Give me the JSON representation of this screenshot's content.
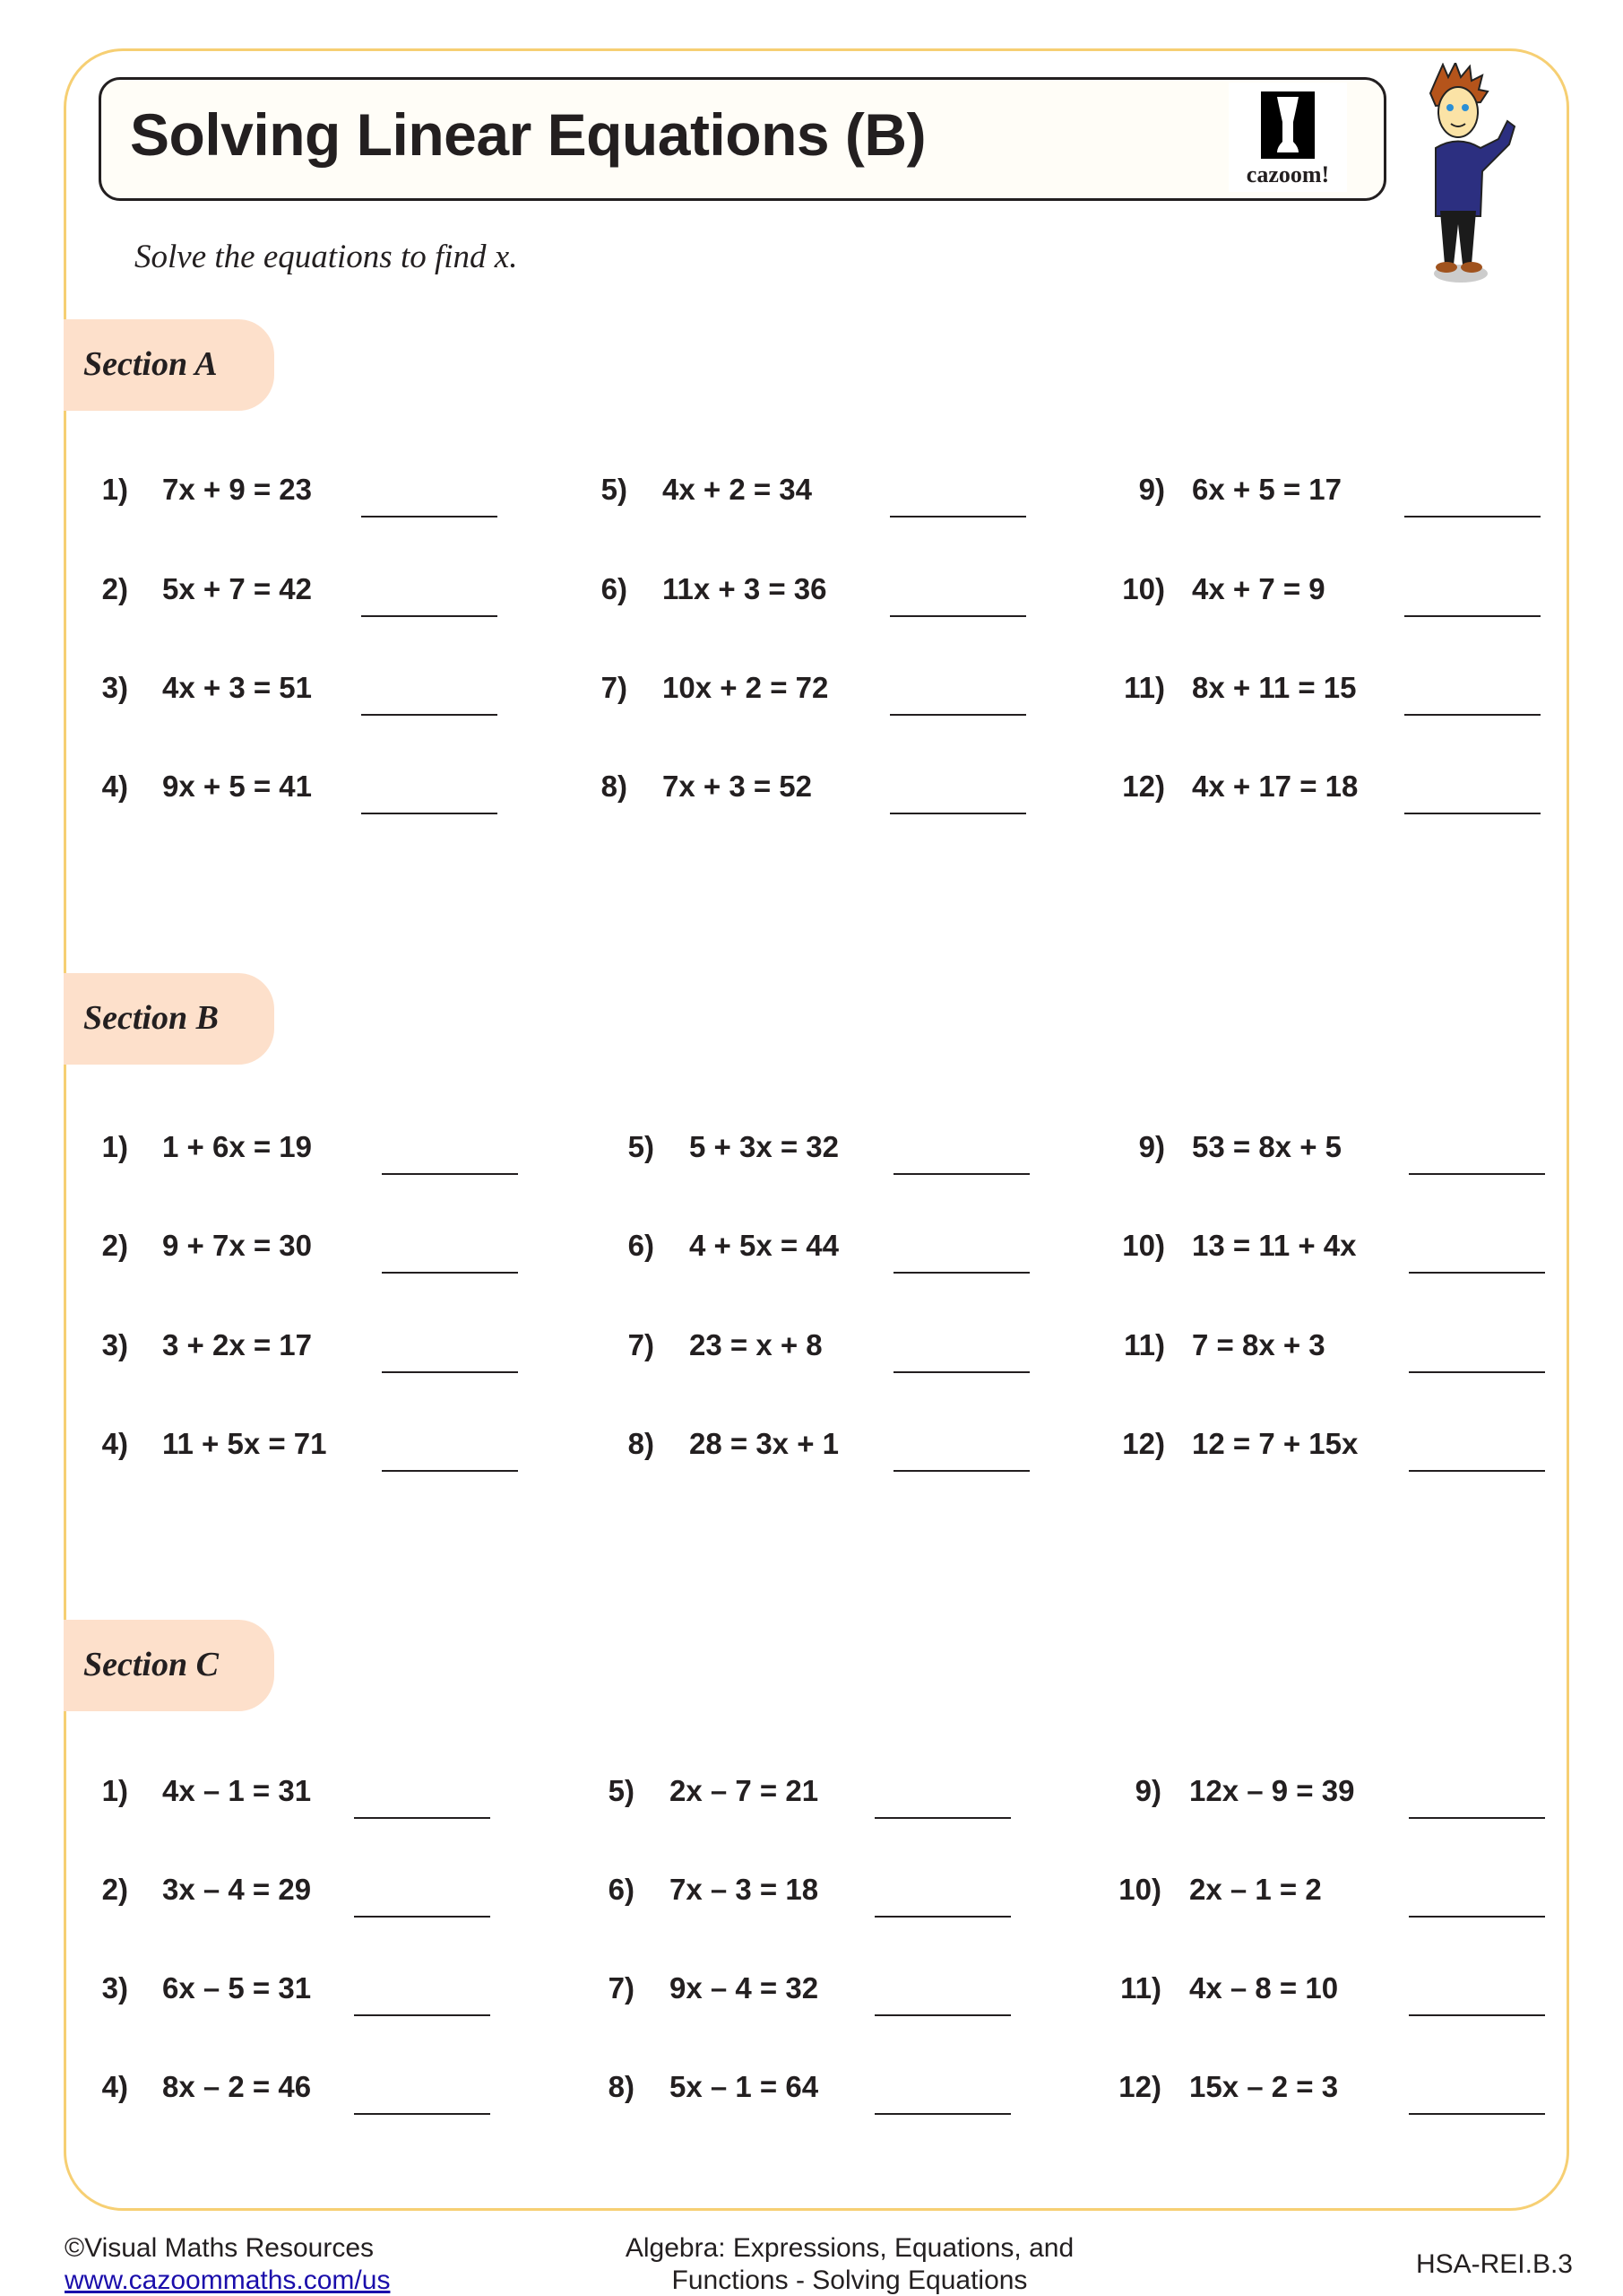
{
  "header": {
    "title": "Solving Linear Equations (B)",
    "logo_text": "cazoom!",
    "instruction": "Solve the equations to find x."
  },
  "sections": [
    {
      "label": "Section A",
      "problems": [
        {
          "n": "1)",
          "eq": "7x + 9 = 23"
        },
        {
          "n": "2)",
          "eq": "5x + 7 = 42"
        },
        {
          "n": "3)",
          "eq": "4x + 3 = 51"
        },
        {
          "n": "4)",
          "eq": "9x + 5 = 41"
        },
        {
          "n": "5)",
          "eq": "4x + 2 = 34"
        },
        {
          "n": "6)",
          "eq": "11x + 3 = 36"
        },
        {
          "n": "7)",
          "eq": "10x + 2 = 72"
        },
        {
          "n": "8)",
          "eq": "7x + 3 = 52"
        },
        {
          "n": "9)",
          "eq": "6x + 5 = 17"
        },
        {
          "n": "10)",
          "eq": "4x + 7 = 9"
        },
        {
          "n": "11)",
          "eq": "8x + 11 = 15"
        },
        {
          "n": "12)",
          "eq": "4x + 17 = 18"
        }
      ]
    },
    {
      "label": "Section B",
      "problems": [
        {
          "n": "1)",
          "eq": "1 + 6x = 19"
        },
        {
          "n": "2)",
          "eq": "9 + 7x = 30"
        },
        {
          "n": "3)",
          "eq": "3 + 2x = 17"
        },
        {
          "n": "4)",
          "eq": "11 + 5x = 71"
        },
        {
          "n": "5)",
          "eq": "5 + 3x = 32"
        },
        {
          "n": "6)",
          "eq": "4 + 5x = 44"
        },
        {
          "n": "7)",
          "eq": "23 = x + 8"
        },
        {
          "n": "8)",
          "eq": "28 = 3x + 1"
        },
        {
          "n": "9)",
          "eq": "53 = 8x + 5"
        },
        {
          "n": "10)",
          "eq": "13 = 11 + 4x"
        },
        {
          "n": "11)",
          "eq": "7 = 8x + 3"
        },
        {
          "n": "12)",
          "eq": "12 = 7 + 15x"
        }
      ]
    },
    {
      "label": "Section C",
      "problems": [
        {
          "n": "1)",
          "eq": "4x – 1 = 31"
        },
        {
          "n": "2)",
          "eq": "3x – 4 = 29"
        },
        {
          "n": "3)",
          "eq": "6x – 5 = 31"
        },
        {
          "n": "4)",
          "eq": "8x – 2 = 46"
        },
        {
          "n": "5)",
          "eq": "2x – 7 = 21"
        },
        {
          "n": "6)",
          "eq": "7x – 3 = 18"
        },
        {
          "n": "7)",
          "eq": "9x – 4 = 32"
        },
        {
          "n": "8)",
          "eq": "5x – 1 = 64"
        },
        {
          "n": "9)",
          "eq": "12x – 9 = 39"
        },
        {
          "n": "10)",
          "eq": "2x – 1 = 2"
        },
        {
          "n": "11)",
          "eq": "4x – 8 = 10"
        },
        {
          "n": "12)",
          "eq": "15x – 2 = 3"
        }
      ]
    }
  ],
  "footer": {
    "copyright": "©Visual Maths Resources",
    "link": "www.cazoommaths.com/us",
    "topic_line1": "Algebra: Expressions, Equations, and",
    "topic_line2": "Functions - Solving Equations",
    "standard": "HSA-REI.B.3"
  },
  "colors": {
    "border": "#f6cf73",
    "section_pill": "#fde0cb",
    "title_box": "#fffdf7"
  }
}
